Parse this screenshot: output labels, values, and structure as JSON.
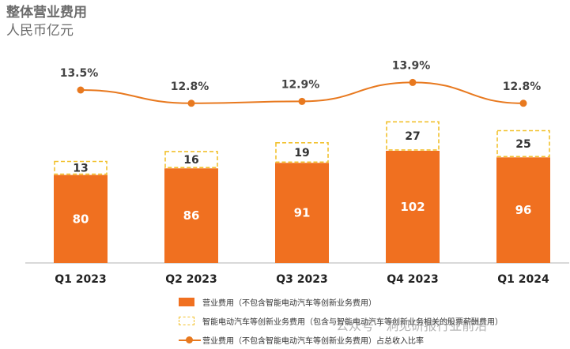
{
  "header": {
    "title": "整体营业费用",
    "unit": "人民币亿元"
  },
  "chart_data": {
    "type": "bar",
    "categories": [
      "Q1 2023",
      "Q2 2023",
      "Q3 2023",
      "Q4 2023",
      "Q1 2024"
    ],
    "series": [
      {
        "name": "营业费用（不包含智能电动汽车等创新业务费用）",
        "kind": "bar-solid",
        "values": [
          80,
          86,
          91,
          102,
          96
        ],
        "labels": [
          "80",
          "86",
          "91",
          "102",
          "96"
        ]
      },
      {
        "name": "智能电动汽车等创新业务费用（包含与智能电动汽车等创新业务相关的股票薪酬费用）",
        "kind": "bar-dashed-stacked",
        "values": [
          13,
          16,
          19,
          27,
          25
        ],
        "labels": [
          "13",
          "16",
          "19",
          "27",
          "25"
        ]
      },
      {
        "name": "营业费用（不包含智能电动汽车等创新业务费用）占总收入比率",
        "kind": "line",
        "values": [
          13.5,
          12.8,
          12.9,
          13.9,
          12.8
        ],
        "labels": [
          "13.5%",
          "12.8%",
          "12.9%",
          "13.9%",
          "12.8%"
        ]
      }
    ],
    "line_range": [
      12.0,
      14.5
    ],
    "ylim": [
      0,
      135
    ],
    "grid": false,
    "legend_position": "bottom",
    "colors": {
      "solid": "#f07020",
      "dashed": "#f2c12e",
      "line": "#e8791f"
    }
  },
  "watermark": "公众号 · 洞见研报行业前沿"
}
